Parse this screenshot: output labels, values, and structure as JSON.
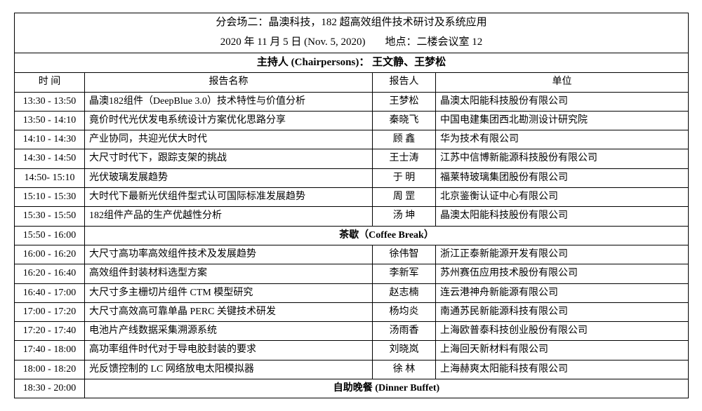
{
  "header": {
    "title": "分会场二：晶澳科技，182 超高效组件技术研讨及系统应用",
    "date_line_before_gap": "2020 年 11 月 5 日  (Nov. 5, 2020)",
    "date_line_after_gap": "地点：二楼会议室 12",
    "chairpersons": "主持人  (Chairpersons)：  王文静、王梦松"
  },
  "columns": {
    "time": "时    间",
    "title": "报告名称",
    "person": "报告人",
    "org": "单位"
  },
  "rows1": [
    {
      "time": "13:30 - 13:50",
      "title": "晶澳182组件（DeepBlue 3.0）技术特性与价值分析",
      "person": "王梦松",
      "org": "晶澳太阳能科技股份有限公司"
    },
    {
      "time": "13:50 - 14:10",
      "title": "竟价时代光伏发电系统设计方案优化思路分享",
      "person": "秦晓飞",
      "org": "中国电建集团西北勘测设计研究院"
    },
    {
      "time": "14:10 - 14:30",
      "title": "产业协同，共迎光伏大时代",
      "person": "顾    鑫",
      "org": "华为技术有限公司"
    },
    {
      "time": "14:30 - 14:50",
      "title": "大尺寸时代下，跟踪支架的挑战",
      "person": "王士涛",
      "org": "江苏中信博新能源科技股份有限公司"
    },
    {
      "time": "14:50- 15:10",
      "title": "光伏玻璃发展趋势",
      "person": "于    明",
      "org": "福莱特玻璃集团股份有限公司"
    },
    {
      "time": "15:10 - 15:30",
      "title": "大时代下最新光伏组件型式认可国际标准发展趋势",
      "person": "周    罡",
      "org": "北京鉴衡认证中心有限公司"
    },
    {
      "time": "15:30 - 15:50",
      "title": "182组件产品的生产优越性分析",
      "person": "汤    坤",
      "org": "晶澳太阳能科技股份有限公司"
    }
  ],
  "break1": {
    "time": "15:50 - 16:00",
    "label": "茶歇（Coffee Break）"
  },
  "rows2": [
    {
      "time": "16:00 - 16:20",
      "title": "大尺寸高功率高效组件技术及发展趋势",
      "person": "徐伟智",
      "org": "浙江正泰新能源开发有限公司"
    },
    {
      "time": "16:20 - 16:40",
      "title": "高效组件封装材料选型方案",
      "person": "李新军",
      "org": "苏州赛伍应用技术股份有限公司"
    },
    {
      "time": "16:40 - 17:00",
      "title": "大尺寸多主栅切片组件 CTM  模型研究",
      "person": "赵志楠",
      "org": "连云港神舟新能源有限公司"
    },
    {
      "time": "17:00 - 17:20",
      "title": "大尺寸高效高可靠单晶 PERC 关键技术研发",
      "person": "杨均炎",
      "org": "南通苏民新能源科技有限公司"
    },
    {
      "time": "17:20 - 17:40",
      "title": "电池片产线数据采集溯源系统",
      "person": "汤雨香",
      "org": "上海欧普泰科技创业股份有限公司"
    },
    {
      "time": "17:40 - 18:00",
      "title": "高功率组件时代对于导电胶封装的要求",
      "person": "刘晓岚",
      "org": "上海回天新材料有限公司"
    },
    {
      "time": "18:00 - 18:20",
      "title": "光反馈控制的 LC 网络放电太阳模拟器",
      "person": "徐    林",
      "org": "上海赫爽太阳能科技有限公司"
    }
  ],
  "dinner": {
    "time": "18:30 - 20:00",
    "label": "自助晚餐  (Dinner Buffet)"
  }
}
